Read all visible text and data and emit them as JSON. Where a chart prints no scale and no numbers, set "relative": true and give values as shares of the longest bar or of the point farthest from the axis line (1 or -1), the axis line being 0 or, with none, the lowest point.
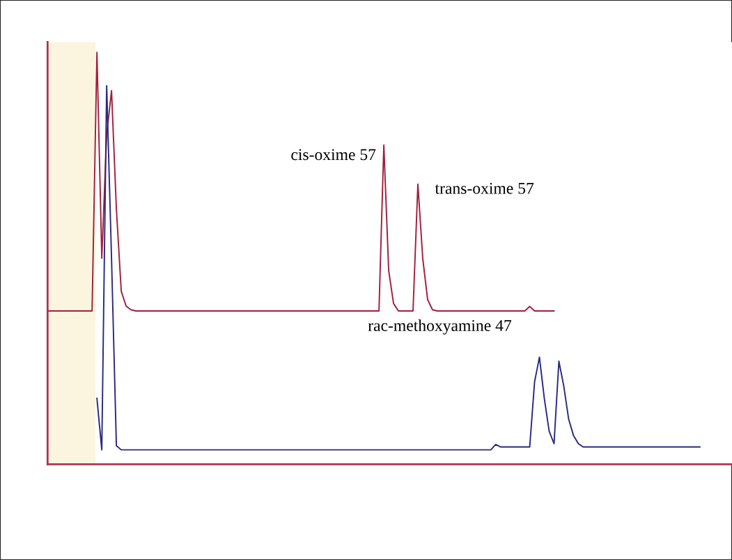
{
  "chart_data": {
    "type": "line",
    "relative": true,
    "categories": [
      null,
      null,
      null,
      null,
      null,
      null,
      null,
      null,
      null,
      null,
      null,
      null,
      null,
      null,
      null,
      null,
      null,
      null,
      null,
      null,
      null,
      null,
      null,
      null,
      null,
      null,
      null,
      null,
      null,
      null,
      null,
      null,
      null,
      null,
      null,
      null,
      null,
      null,
      null,
      null,
      null,
      null,
      null,
      null,
      null,
      null,
      null,
      null,
      null,
      null,
      null,
      null,
      null,
      null,
      null,
      null,
      null,
      null,
      null,
      null,
      null,
      null,
      null,
      null,
      null,
      null,
      null,
      null,
      null,
      null,
      null,
      null,
      null,
      null,
      null,
      null,
      null,
      null,
      null,
      null,
      null,
      null,
      null,
      null,
      null,
      null,
      null,
      null,
      null,
      null,
      null,
      null,
      null,
      null,
      null,
      null,
      null,
      null,
      null,
      null,
      null,
      null,
      null,
      null,
      null,
      null,
      null,
      null,
      null,
      null,
      null,
      null,
      null,
      null,
      null,
      null,
      null,
      null,
      null,
      null,
      null,
      null,
      null,
      null,
      null,
      null,
      null,
      null,
      null,
      null,
      null,
      null,
      null,
      null,
      null,
      null,
      null,
      null,
      null,
      null
    ],
    "series": [
      {
        "color": "#a0203c",
        "values": [
          0.372,
          0.372,
          0.372,
          0.372,
          0.372,
          0.372,
          0.372,
          0.372,
          0.372,
          0.372,
          1.0,
          0.5,
          0.8,
          0.907,
          0.62,
          0.42,
          0.384,
          0.375,
          0.372,
          0.372,
          0.372,
          0.372,
          0.372,
          0.372,
          0.372,
          0.372,
          0.372,
          0.372,
          0.372,
          0.372,
          0.372,
          0.372,
          0.372,
          0.372,
          0.372,
          0.372,
          0.372,
          0.372,
          0.372,
          0.372,
          0.372,
          0.372,
          0.372,
          0.372,
          0.372,
          0.372,
          0.372,
          0.372,
          0.372,
          0.372,
          0.372,
          0.372,
          0.372,
          0.372,
          0.372,
          0.372,
          0.372,
          0.372,
          0.372,
          0.372,
          0.372,
          0.372,
          0.372,
          0.372,
          0.372,
          0.372,
          0.372,
          0.372,
          0.372,
          0.775,
          0.47,
          0.39,
          0.372,
          0.372,
          0.372,
          0.372,
          0.68,
          0.5,
          0.4,
          0.375,
          0.372,
          0.372,
          0.372,
          0.372,
          0.372,
          0.372,
          0.372,
          0.372,
          0.372,
          0.372,
          0.372,
          0.372,
          0.372,
          0.372,
          0.372,
          0.372,
          0.372,
          0.372,
          0.372,
          0.383,
          0.372,
          0.372,
          0.372,
          0.372,
          0.372,
          null,
          null,
          null,
          null,
          null,
          null,
          null,
          null,
          null,
          null,
          null,
          null,
          null,
          null,
          null,
          null,
          null,
          null,
          null,
          null,
          null,
          null,
          null,
          null,
          null,
          null,
          null,
          null,
          null,
          null,
          null,
          null,
          null,
          null,
          null
        ]
      },
      {
        "color": "#2a2a80",
        "values": [
          null,
          null,
          null,
          null,
          null,
          null,
          null,
          null,
          null,
          null,
          0.16,
          0.035,
          0.919,
          0.5,
          0.045,
          0.035,
          0.035,
          0.035,
          0.035,
          0.035,
          0.035,
          0.035,
          0.035,
          0.035,
          0.035,
          0.035,
          0.035,
          0.035,
          0.035,
          0.035,
          0.035,
          0.035,
          0.035,
          0.035,
          0.035,
          0.035,
          0.035,
          0.035,
          0.035,
          0.035,
          0.035,
          0.035,
          0.035,
          0.035,
          0.035,
          0.035,
          0.035,
          0.035,
          0.035,
          0.035,
          0.035,
          0.035,
          0.035,
          0.035,
          0.035,
          0.035,
          0.035,
          0.035,
          0.035,
          0.035,
          0.035,
          0.035,
          0.035,
          0.035,
          0.035,
          0.035,
          0.035,
          0.035,
          0.035,
          0.035,
          0.035,
          0.035,
          0.035,
          0.035,
          0.035,
          0.035,
          0.035,
          0.035,
          0.035,
          0.035,
          0.035,
          0.035,
          0.035,
          0.035,
          0.035,
          0.035,
          0.035,
          0.035,
          0.035,
          0.035,
          0.035,
          0.035,
          0.048,
          0.042,
          0.042,
          0.042,
          0.042,
          0.042,
          0.042,
          0.042,
          0.2,
          0.26,
          0.16,
          0.08,
          0.05,
          0.25,
          0.19,
          0.11,
          0.07,
          0.05,
          0.042,
          0.042,
          0.042,
          0.042,
          0.042,
          0.042,
          0.042,
          0.042,
          0.042,
          0.042,
          0.042,
          0.042,
          0.042,
          0.042,
          0.042,
          0.042,
          0.042,
          0.042,
          0.042,
          0.042,
          0.042,
          0.042,
          0.042,
          0.042,
          0.042,
          null,
          null,
          null,
          null,
          null
        ]
      }
    ],
    "annotations": [
      "cis-oxime 57",
      "trans-oxime 57",
      "rac-methoxyamine 47"
    ],
    "grid": false,
    "legend": false
  }
}
